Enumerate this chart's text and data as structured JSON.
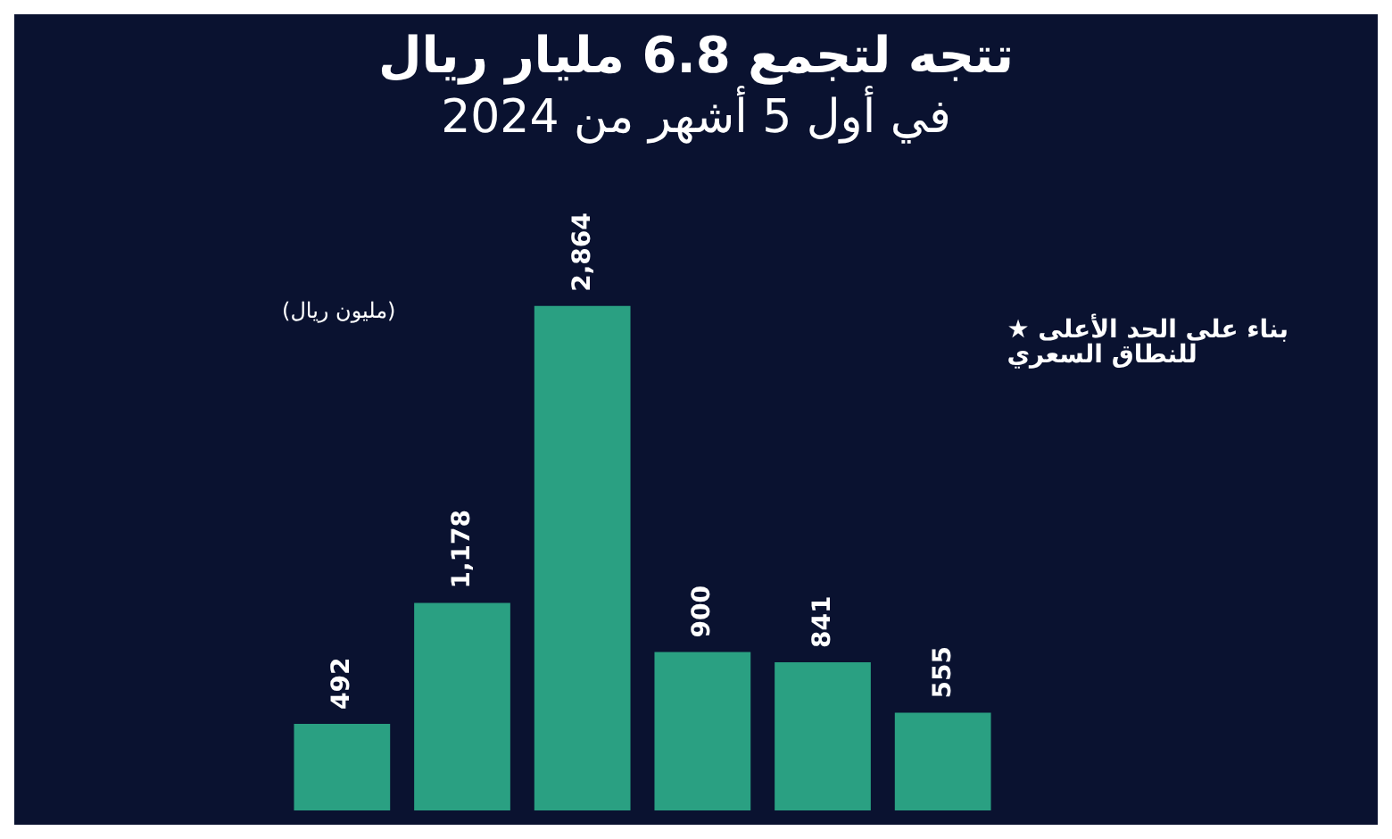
{
  "chart_data": {
    "type": "bar",
    "title": "تتجه لتجمع 6.8 مليار ريال",
    "subtitle": "في أول 5 أشهر من 2024",
    "categories": [
      null,
      null,
      null,
      null,
      null,
      null
    ],
    "values": [
      492,
      1178,
      2864,
      900,
      841,
      555
    ],
    "value_labels": [
      "492",
      "1,178",
      "2,864",
      "900",
      "841",
      "555"
    ],
    "color": "#2aa082",
    "annotations": [
      "(مليون ريال)",
      "★ بناء على الحد الأعلى\nللنطاق السعري"
    ]
  }
}
